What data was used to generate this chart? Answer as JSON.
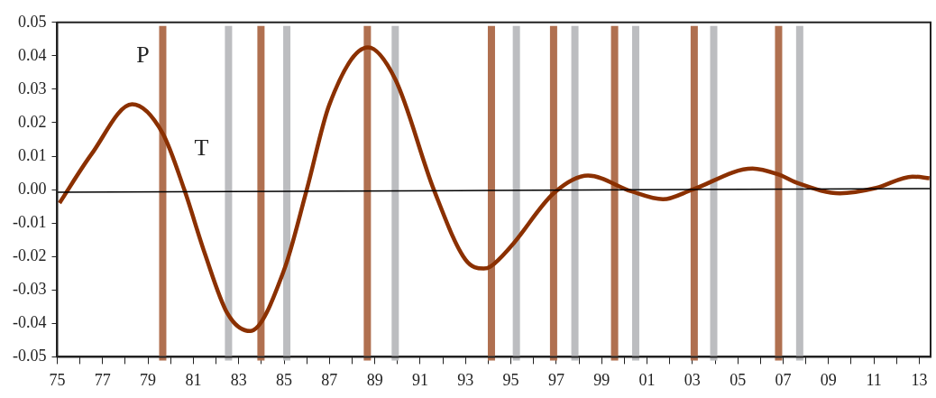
{
  "chart_data": {
    "type": "line",
    "x": [
      1975.1,
      1976.5,
      1978.3,
      1979.65,
      1980.6,
      1981.5,
      1982.5,
      1983.5,
      1985,
      1986,
      1987,
      1988.7,
      1989.9,
      1991.6,
      1993,
      1993.8,
      1994.1,
      1995,
      1996.9,
      1998.4,
      2000.3,
      2001.7,
      2003,
      2005.65,
      2006.8,
      2007.7,
      2009.5,
      2011.1,
      2012.7,
      2013.45
    ],
    "series": [
      {
        "color": "#8b3000",
        "values": [
          -0.004,
          0.0105,
          0.0255,
          0.0168,
          0,
          -0.019,
          -0.037,
          -0.0423,
          -0.024,
          0,
          0.0255,
          0.0425,
          0.033,
          0,
          -0.021,
          -0.0236,
          -0.023,
          -0.017,
          -0.001,
          0.0042,
          -0.0005,
          -0.0029,
          0,
          0.0063,
          0.0045,
          0.0018,
          -0.0011,
          0.0005,
          0.0039,
          0.0034
        ]
      },
      {
        "color": "#000000",
        "x": [
          1975,
          2013.5
        ],
        "values": [
          -0.0008,
          0.0003
        ]
      }
    ],
    "xlim": [
      1975,
      2013.5
    ],
    "xticks": [
      {
        "value": 1975,
        "label": "75"
      },
      {
        "value": 1976,
        "label": null
      },
      {
        "value": 1977,
        "label": "77"
      },
      {
        "value": 1978,
        "label": null
      },
      {
        "value": 1979,
        "label": "79"
      },
      {
        "value": 1980,
        "label": null
      },
      {
        "value": 1981,
        "label": "81"
      },
      {
        "value": 1982,
        "label": null
      },
      {
        "value": 1983,
        "label": "83"
      },
      {
        "value": 1984,
        "label": null
      },
      {
        "value": 1985,
        "label": "85"
      },
      {
        "value": 1986,
        "label": null
      },
      {
        "value": 1987,
        "label": "87"
      },
      {
        "value": 1988,
        "label": null
      },
      {
        "value": 1989,
        "label": "89"
      },
      {
        "value": 1990,
        "label": null
      },
      {
        "value": 1991,
        "label": "91"
      },
      {
        "value": 1992,
        "label": null
      },
      {
        "value": 1993,
        "label": "93"
      },
      {
        "value": 1994,
        "label": null
      },
      {
        "value": 1995,
        "label": "95"
      },
      {
        "value": 1996,
        "label": null
      },
      {
        "value": 1997,
        "label": "97"
      },
      {
        "value": 1998,
        "label": null
      },
      {
        "value": 1999,
        "label": "99"
      },
      {
        "value": 2000,
        "label": null
      },
      {
        "value": 2001,
        "label": "01"
      },
      {
        "value": 2002,
        "label": null
      },
      {
        "value": 2003,
        "label": "03"
      },
      {
        "value": 2004,
        "label": null
      },
      {
        "value": 2005,
        "label": "05"
      },
      {
        "value": 2006,
        "label": null
      },
      {
        "value": 2007,
        "label": "07"
      },
      {
        "value": 2008,
        "label": null
      },
      {
        "value": 2009,
        "label": "09"
      },
      {
        "value": 2010,
        "label": null
      },
      {
        "value": 2011,
        "label": "11"
      },
      {
        "value": 2012,
        "label": null
      },
      {
        "value": 2013,
        "label": "13"
      }
    ],
    "ylim": [
      -0.05,
      0.05
    ],
    "yticks": [
      {
        "value": -0.05,
        "label": "-0.05"
      },
      {
        "value": -0.04,
        "label": "-0.04"
      },
      {
        "value": -0.03,
        "label": "-0.03"
      },
      {
        "value": -0.02,
        "label": "-0.02"
      },
      {
        "value": -0.01,
        "label": "-0.01"
      },
      {
        "value": 0,
        "label": "0.00"
      },
      {
        "value": 0.01,
        "label": "0.01"
      },
      {
        "value": 0.02,
        "label": "0.02"
      },
      {
        "value": 0.03,
        "label": "0.03"
      },
      {
        "value": 0.04,
        "label": "0.04"
      },
      {
        "value": 0.05,
        "label": "0.05"
      }
    ],
    "ref_lines": [
      {
        "axis": "x",
        "value": 1979.65,
        "color": "#b07050"
      },
      {
        "axis": "x",
        "value": 1983.98,
        "color": "#b07050"
      },
      {
        "axis": "x",
        "value": 1988.67,
        "color": "#b07050"
      },
      {
        "axis": "x",
        "value": 1994.14,
        "color": "#b07050"
      },
      {
        "axis": "x",
        "value": 1996.88,
        "color": "#b07050"
      },
      {
        "axis": "x",
        "value": 1999.57,
        "color": "#b07050"
      },
      {
        "axis": "x",
        "value": 2003.08,
        "color": "#b07050"
      },
      {
        "axis": "x",
        "value": 2006.8,
        "color": "#b07050"
      },
      {
        "axis": "x",
        "value": 1982.55,
        "color": "#bcbdc0"
      },
      {
        "axis": "x",
        "value": 1985.12,
        "color": "#bcbdc0"
      },
      {
        "axis": "x",
        "value": 1989.9,
        "color": "#bcbdc0"
      },
      {
        "axis": "x",
        "value": 1995.24,
        "color": "#bcbdc0"
      },
      {
        "axis": "x",
        "value": 1997.82,
        "color": "#bcbdc0"
      },
      {
        "axis": "x",
        "value": 2000.5,
        "color": "#bcbdc0"
      },
      {
        "axis": "x",
        "value": 2003.94,
        "color": "#bcbdc0"
      },
      {
        "axis": "x",
        "value": 2007.73,
        "color": "#bcbdc0"
      }
    ],
    "annotations": [
      "P",
      "T"
    ],
    "grid": false,
    "legend": false,
    "marker": "none",
    "line_style": "solid"
  }
}
